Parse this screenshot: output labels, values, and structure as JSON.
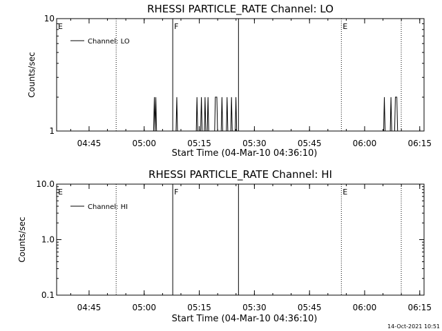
{
  "chart_data": [
    {
      "type": "line",
      "title": "RHESSI PARTICLE_RATE Channel: LO",
      "xlabel": "Start Time (04-Mar-10 04:36:10)",
      "ylabel": "Counts/sec",
      "yscale": "log",
      "ylim": [
        1,
        10
      ],
      "xlim_minutes_from_0436": [
        0,
        100
      ],
      "x_tick_labels": [
        "04:45",
        "05:00",
        "05:15",
        "05:30",
        "05:45",
        "06:00",
        "06:15"
      ],
      "y_tick_labels": [
        "1",
        "10"
      ],
      "legend": {
        "label": "Channel: LO",
        "placement": "top-left"
      },
      "series": [
        {
          "name": "Channel: LO",
          "points": [
            [
              0,
              1
            ],
            [
              26.4,
              1
            ],
            [
              26.6,
              2
            ],
            [
              26.8,
              1
            ],
            [
              27.0,
              2
            ],
            [
              27.2,
              1
            ],
            [
              32.5,
              1
            ],
            [
              32.7,
              2
            ],
            [
              32.9,
              1
            ],
            [
              38.0,
              1
            ],
            [
              38.2,
              2
            ],
            [
              38.4,
              1
            ],
            [
              39.2,
              1
            ],
            [
              39.4,
              2
            ],
            [
              39.6,
              1
            ],
            [
              40.2,
              1
            ],
            [
              40.4,
              2
            ],
            [
              40.6,
              1
            ],
            [
              41.0,
              1
            ],
            [
              41.2,
              2
            ],
            [
              41.4,
              1
            ],
            [
              43.0,
              1
            ],
            [
              43.2,
              2
            ],
            [
              43.4,
              2
            ],
            [
              43.6,
              2
            ],
            [
              43.8,
              1
            ],
            [
              44.8,
              1
            ],
            [
              45.0,
              2
            ],
            [
              45.2,
              1
            ],
            [
              46.2,
              1
            ],
            [
              46.4,
              2
            ],
            [
              46.6,
              1
            ],
            [
              47.4,
              1
            ],
            [
              47.6,
              2
            ],
            [
              47.8,
              1
            ],
            [
              48.6,
              1
            ],
            [
              48.8,
              2
            ],
            [
              49.0,
              1
            ],
            [
              89.0,
              1
            ],
            [
              89.2,
              2
            ],
            [
              89.4,
              1
            ],
            [
              90.8,
              1
            ],
            [
              91.0,
              2
            ],
            [
              91.2,
              1
            ],
            [
              92.0,
              1
            ],
            [
              92.2,
              2
            ],
            [
              92.6,
              2
            ],
            [
              92.8,
              1
            ],
            [
              100,
              1
            ]
          ]
        }
      ],
      "markers": [
        {
          "label": "E",
          "x": 0,
          "style": "dotted"
        },
        {
          "label": "",
          "x": 16.2,
          "style": "dotted"
        },
        {
          "label": "F",
          "x": 31.6,
          "style": "solid"
        },
        {
          "label": "",
          "x": 49.5,
          "style": "solid"
        },
        {
          "label": "E",
          "x": 77.5,
          "style": "dotted"
        },
        {
          "label": "",
          "x": 93.8,
          "style": "dotted"
        }
      ],
      "grid": false
    },
    {
      "type": "line",
      "title": "RHESSI PARTICLE_RATE Channel: HI",
      "xlabel": "Start Time (04-Mar-10 04:36:10)",
      "ylabel": "Counts/sec",
      "yscale": "log",
      "ylim": [
        0.1,
        10
      ],
      "xlim_minutes_from_0436": [
        0,
        100
      ],
      "x_tick_labels": [
        "04:45",
        "05:00",
        "05:15",
        "05:30",
        "05:45",
        "06:00",
        "06:15"
      ],
      "y_tick_labels": [
        "0.1",
        "1.0",
        "10.0"
      ],
      "legend": {
        "label": "Channel: HI",
        "placement": "top-left"
      },
      "series": [
        {
          "name": "Channel: HI",
          "points": []
        }
      ],
      "markers": [
        {
          "label": "E",
          "x": 0,
          "style": "dotted"
        },
        {
          "label": "",
          "x": 16.2,
          "style": "dotted"
        },
        {
          "label": "F",
          "x": 31.6,
          "style": "solid"
        },
        {
          "label": "",
          "x": 49.5,
          "style": "solid"
        },
        {
          "label": "E",
          "x": 77.5,
          "style": "dotted"
        },
        {
          "label": "",
          "x": 93.8,
          "style": "dotted"
        }
      ],
      "grid": false
    }
  ],
  "footer": {
    "timestamp": "14-Oct-2021 10:51"
  }
}
